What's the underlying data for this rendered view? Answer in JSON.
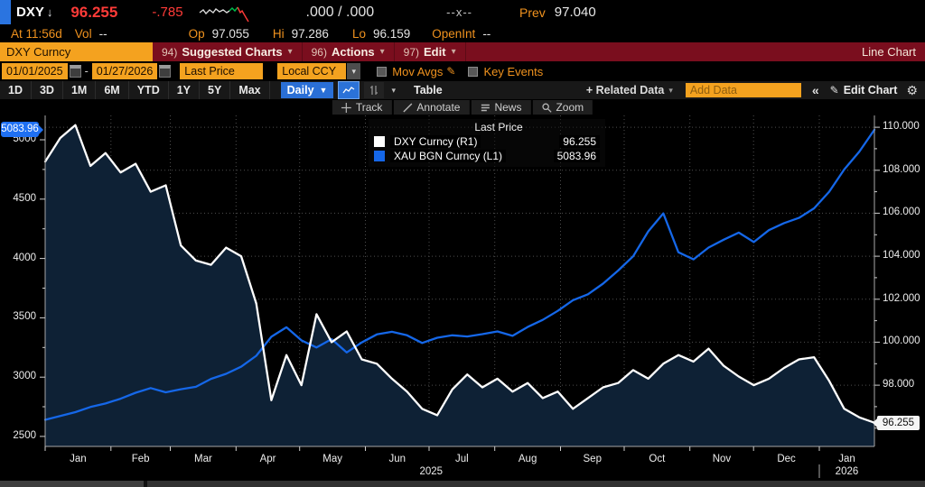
{
  "icons": {
    "down_arrow": "↓",
    "caret_down": "▾",
    "caret_down_solid": "▼",
    "collapse": "«",
    "pencil": "✎",
    "gear": "⚙"
  },
  "quote": {
    "ticker": "DXY",
    "last": "96.255",
    "change": "-.785",
    "bid_ask": ".000 / .000",
    "x_sep": "--x--",
    "prev_label": "Prev",
    "prev": "97.040",
    "at_time": "At 11:56d",
    "vol_label": "Vol",
    "vol": "--",
    "op_label": "Op",
    "op": "97.055",
    "hi_label": "Hi",
    "hi": "97.286",
    "lo_label": "Lo",
    "lo": "96.159",
    "openint_label": "OpenInt",
    "openint": "--"
  },
  "menubar": {
    "security": "DXY Curncy",
    "items": [
      {
        "key": "94)",
        "label": "Suggested Charts"
      },
      {
        "key": "96)",
        "label": "Actions"
      },
      {
        "key": "97)",
        "label": "Edit"
      }
    ],
    "right": "Line Chart"
  },
  "controls": {
    "date_from": "01/01/2025",
    "date_to": "01/27/2026",
    "price_field": "Last Price",
    "currency": "Local CCY",
    "mov_avgs": "Mov Avgs",
    "key_events": "Key Events"
  },
  "toolbar": {
    "ranges": [
      "1D",
      "3D",
      "1M",
      "6M",
      "YTD",
      "1Y",
      "5Y",
      "Max"
    ],
    "period": "Daily",
    "table": "Table",
    "related_data": "+ Related Data",
    "add_data_placeholder": "Add Data",
    "collapse": "«",
    "edit_chart": "Edit Chart"
  },
  "chart_toolbar": {
    "track": "Track",
    "annotate": "Annotate",
    "news": "News",
    "zoom": "Zoom"
  },
  "legend": {
    "title": "Last Price",
    "series": [
      {
        "swatch": "#ffffff",
        "label": "DXY Curncy  (R1)",
        "value": "96.255"
      },
      {
        "swatch": "#1567e8",
        "label": "XAU BGN Curncy  (L1)",
        "value": "5083.96"
      }
    ]
  },
  "badges": {
    "left_top": "5083.96",
    "right_last": "96.255"
  },
  "chart_data": {
    "type": "line",
    "title": "DXY Curncy vs XAU BGN Curncy, 01/01/2025 - 01/27/2026, Daily, Last Price",
    "x_unit": "days since 2025-01-01",
    "x_range": [
      0,
      391
    ],
    "grid": true,
    "legend_position": "top-center",
    "series": [
      {
        "name": "DXY Curncy (R1)",
        "axis": "right",
        "color": "#ffffff",
        "fill": "#0e2135",
        "last": 96.255,
        "values": [
          108.4,
          109.5,
          110.1,
          108.2,
          108.8,
          107.9,
          108.3,
          107.0,
          107.3,
          104.5,
          103.8,
          103.6,
          104.4,
          104.0,
          101.8,
          97.3,
          99.4,
          98.0,
          101.3,
          100.0,
          100.5,
          99.2,
          99.0,
          98.3,
          97.7,
          96.9,
          96.6,
          97.8,
          98.5,
          97.9,
          98.3,
          97.7,
          98.1,
          97.4,
          97.7,
          96.9,
          97.4,
          97.9,
          98.1,
          98.7,
          98.3,
          99.0,
          99.4,
          99.1,
          99.7,
          98.9,
          98.4,
          98.0,
          98.3,
          98.8,
          99.2,
          99.3,
          98.2,
          96.9,
          96.5,
          96.255
        ]
      },
      {
        "name": "XAU BGN Curncy (L1)",
        "axis": "left",
        "color": "#1567e8",
        "fill": null,
        "last": 5083.96,
        "values": [
          2640,
          2672,
          2705,
          2748,
          2778,
          2818,
          2868,
          2908,
          2872,
          2898,
          2918,
          2985,
          3028,
          3088,
          3180,
          3340,
          3420,
          3310,
          3250,
          3320,
          3208,
          3292,
          3360,
          3382,
          3352,
          3288,
          3332,
          3352,
          3342,
          3362,
          3385,
          3348,
          3422,
          3482,
          3558,
          3648,
          3698,
          3788,
          3898,
          4018,
          4228,
          4380,
          4052,
          3992,
          4092,
          4158,
          4218,
          4138,
          4238,
          4298,
          4342,
          4422,
          4562,
          4750,
          4900,
          5083.96
        ]
      }
    ],
    "left_axis": {
      "tick_labels": [
        "5000",
        "4500",
        "4000",
        "3500",
        "3000",
        "2500"
      ],
      "tick_values": [
        5000,
        4500,
        4000,
        3500,
        3000,
        2500
      ],
      "range": [
        2416,
        5205
      ]
    },
    "right_axis": {
      "tick_labels": [
        "110.000",
        "108.000",
        "106.000",
        "104.000",
        "102.000",
        "100.000",
        "98.000",
        "96.000"
      ],
      "tick_values": [
        110,
        108,
        106,
        104,
        102,
        100,
        98,
        96
      ],
      "range": [
        95.15,
        110.55
      ]
    },
    "x_ticks": {
      "months": [
        "Jan",
        "Feb",
        "Mar",
        "Apr",
        "May",
        "Jun",
        "Jul",
        "Aug",
        "Sep",
        "Oct",
        "Nov",
        "Dec",
        "Jan"
      ],
      "month_start_days": [
        0,
        31,
        59,
        90,
        120,
        151,
        181,
        212,
        243,
        273,
        304,
        334,
        365
      ],
      "years": [
        {
          "label": "2025",
          "day": 182
        },
        {
          "label": "2026",
          "day": 378
        }
      ],
      "year_separator_day": 365
    }
  }
}
